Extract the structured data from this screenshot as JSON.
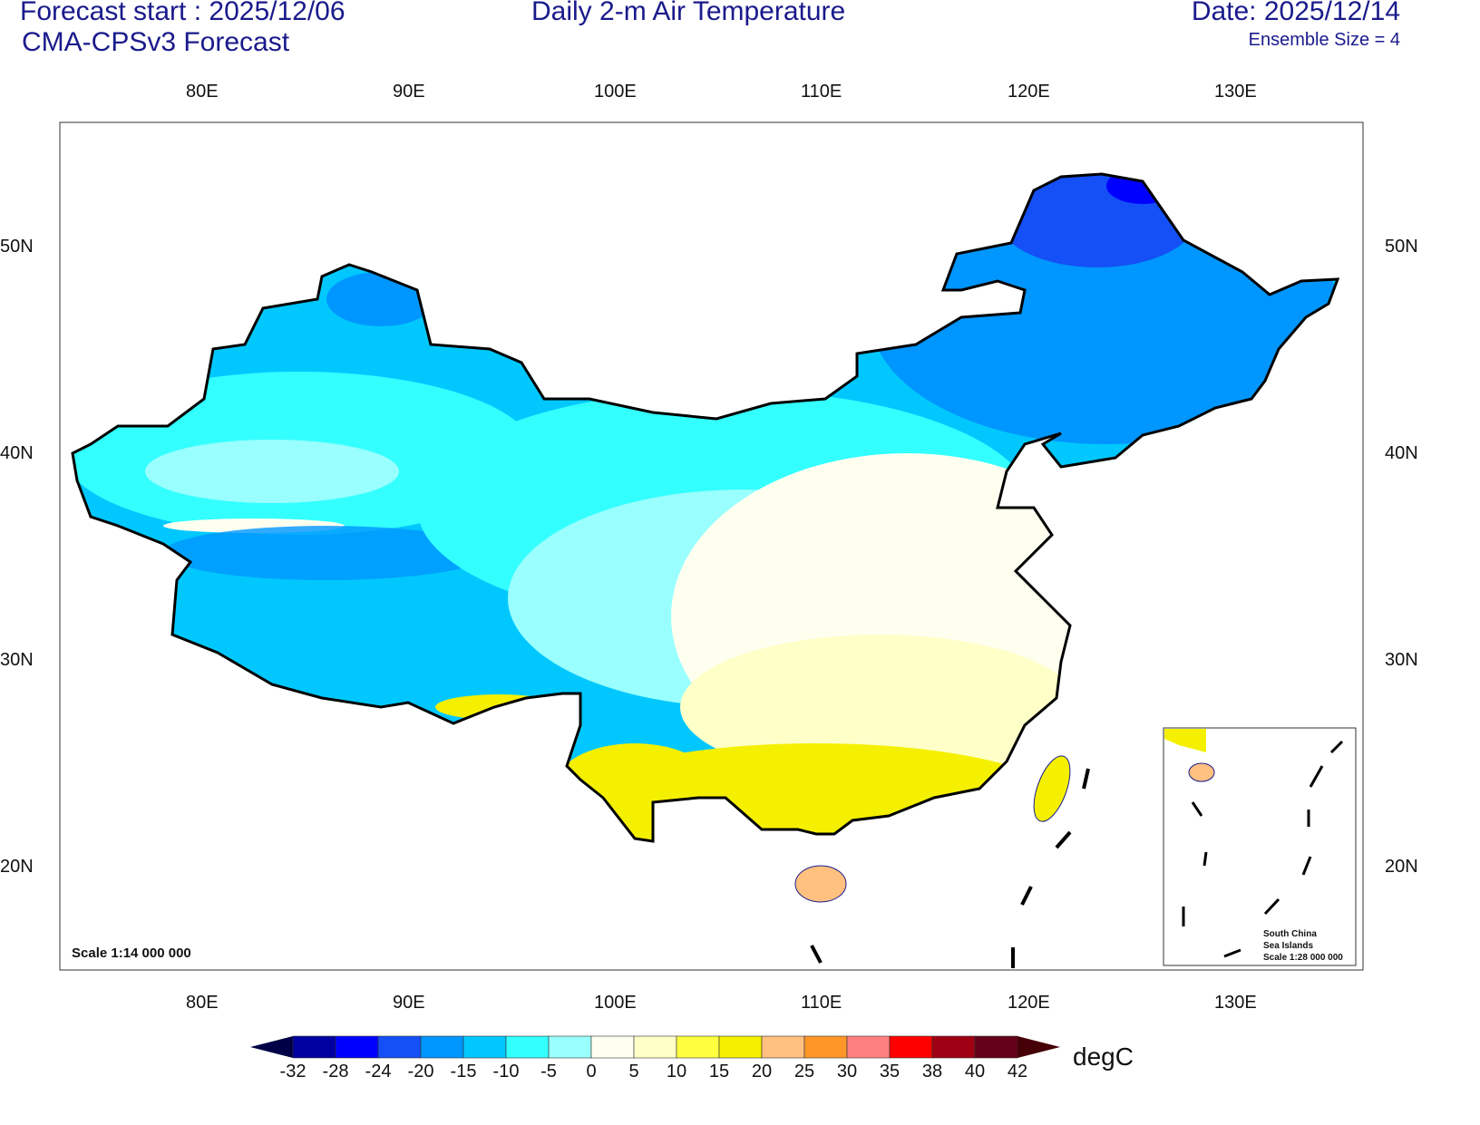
{
  "header": {
    "forecast_start": "Forecast start : 2025/12/06",
    "model": "CMA-CPSv3 Forecast",
    "title": "Daily 2-m Air Temperature",
    "date": "Date: 2025/12/14",
    "ensemble": "Ensemble Size = 4"
  },
  "axes": {
    "lon_labels": [
      "80E",
      "90E",
      "100E",
      "110E",
      "120E",
      "130E"
    ],
    "lat_labels": [
      "50N",
      "40N",
      "30N",
      "20N"
    ]
  },
  "map": {
    "scale": "Scale 1:14 000 000",
    "inset_title": "South China",
    "inset_title2": "Sea Islands",
    "inset_scale": "Scale 1:28 000 000"
  },
  "colorbar": {
    "unit": "degC",
    "levels": [
      "-32",
      "-28",
      "-24",
      "-20",
      "-15",
      "-10",
      "-5",
      "0",
      "5",
      "10",
      "15",
      "20",
      "25",
      "30",
      "35",
      "38",
      "40",
      "42"
    ],
    "colors": [
      "#000046",
      "#0000a0",
      "#0000ff",
      "#1450f5",
      "#0096ff",
      "#00c8ff",
      "#33ffff",
      "#99ffff",
      "#fffff0",
      "#ffffc8",
      "#ffff40",
      "#f5f000",
      "#ffc080",
      "#ff9628",
      "#ff8080",
      "#ff0000",
      "#a00014",
      "#640018",
      "#460008"
    ]
  }
}
